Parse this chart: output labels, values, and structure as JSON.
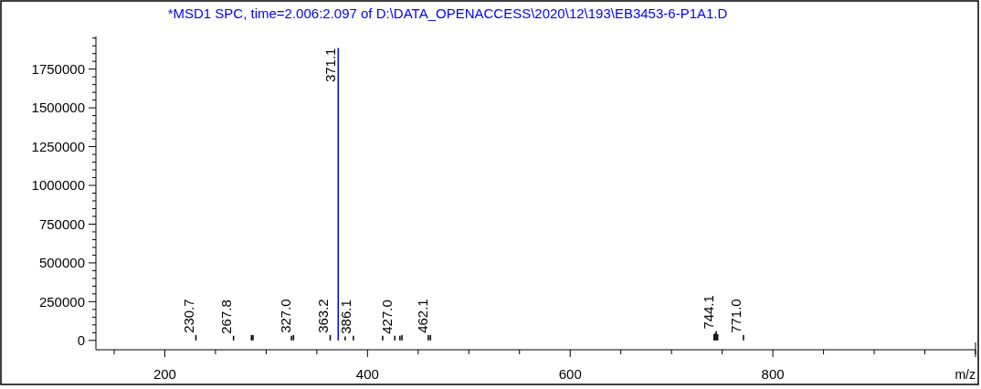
{
  "chart_data": {
    "type": "bar",
    "title": "*MSD1 SPC, time=2.006:2.097 of D:\\DATA_OPENACCESS\\2020\\12\\193\\EB3453-6-P1A1.D",
    "xlabel": "m/z",
    "x": [
      230.7,
      267.8,
      285.5,
      287.0,
      325.0,
      327.0,
      363.2,
      371.1,
      378.0,
      386.1,
      415.0,
      427.0,
      432.0,
      434.0,
      460.0,
      462.1,
      742.0,
      743.0,
      744.1,
      745.5,
      771.0
    ],
    "values": [
      35000,
      30000,
      35000,
      35000,
      30000,
      35000,
      35000,
      1886000,
      25000,
      30000,
      30000,
      30000,
      30000,
      35000,
      35000,
      35000,
      40000,
      45000,
      60000,
      40000,
      35000
    ],
    "colors": [
      "#000000",
      "#000000",
      "#000000",
      "#000000",
      "#000000",
      "#000000",
      "#000000",
      "#0000ff",
      "#000000",
      "#000000",
      "#000000",
      "#000000",
      "#000000",
      "#000000",
      "#000000",
      "#000000",
      "#000000",
      "#000000",
      "#000000",
      "#000000",
      "#000000"
    ],
    "xlim": [
      132,
      1000
    ],
    "ylim": [
      -60000,
      1960000
    ],
    "xticks": [
      {
        "value": 150,
        "label": null
      },
      200,
      {
        "value": 250,
        "label": null
      },
      {
        "value": 300,
        "label": null
      },
      {
        "value": 350,
        "label": null
      },
      400,
      {
        "value": 450,
        "label": null
      },
      {
        "value": 500,
        "label": null
      },
      {
        "value": 550,
        "label": null
      },
      600,
      {
        "value": 650,
        "label": null
      },
      {
        "value": 700,
        "label": null
      },
      {
        "value": 750,
        "label": null
      },
      800,
      {
        "value": 850,
        "label": null
      },
      {
        "value": 900,
        "label": null
      },
      {
        "value": 950,
        "label": null
      },
      {
        "value": 1000,
        "label": null
      }
    ],
    "yticks": [
      0,
      {
        "value": 50000,
        "label": null
      },
      {
        "value": 100000,
        "label": null
      },
      {
        "value": 150000,
        "label": null
      },
      {
        "value": 200000,
        "label": null
      },
      250000,
      {
        "value": 300000,
        "label": null
      },
      {
        "value": 350000,
        "label": null
      },
      {
        "value": 400000,
        "label": null
      },
      {
        "value": 450000,
        "label": null
      },
      500000,
      {
        "value": 550000,
        "label": null
      },
      {
        "value": 600000,
        "label": null
      },
      {
        "value": 650000,
        "label": null
      },
      {
        "value": 700000,
        "label": null
      },
      750000,
      {
        "value": 800000,
        "label": null
      },
      {
        "value": 850000,
        "label": null
      },
      {
        "value": 900000,
        "label": null
      },
      {
        "value": 950000,
        "label": null
      },
      1000000,
      {
        "value": 1050000,
        "label": null
      },
      {
        "value": 1100000,
        "label": null
      },
      {
        "value": 1150000,
        "label": null
      },
      {
        "value": 1200000,
        "label": null
      },
      1250000,
      {
        "value": 1300000,
        "label": null
      },
      {
        "value": 1350000,
        "label": null
      },
      {
        "value": 1400000,
        "label": null
      },
      {
        "value": 1450000,
        "label": null
      },
      1500000,
      {
        "value": 1550000,
        "label": null
      },
      {
        "value": 1600000,
        "label": null
      },
      {
        "value": 1650000,
        "label": null
      },
      {
        "value": 1700000,
        "label": null
      },
      1750000,
      {
        "value": 1800000,
        "label": null
      },
      {
        "value": 1850000,
        "label": null
      },
      {
        "value": 1900000,
        "label": null
      },
      {
        "value": 1950000,
        "label": null
      }
    ],
    "annotations": [
      {
        "text": "230.7",
        "x": 230.7,
        "y": 35000
      },
      {
        "text": "267.8",
        "x": 267.8,
        "y": 30000
      },
      {
        "text": "327.0",
        "x": 327.0,
        "y": 35000
      },
      {
        "text": "363.2",
        "x": 363.2,
        "y": 35000
      },
      {
        "text": "371.1",
        "x": 371.1,
        "y": 1886000
      },
      {
        "text": "386.1",
        "x": 386.1,
        "y": 30000
      },
      {
        "text": "427.0",
        "x": 427.0,
        "y": 30000
      },
      {
        "text": "462.1",
        "x": 462.1,
        "y": 35000
      },
      {
        "text": "744.1",
        "x": 744.1,
        "y": 60000
      },
      {
        "text": "771.0",
        "x": 771.0,
        "y": 35000
      }
    ],
    "grid": false
  }
}
